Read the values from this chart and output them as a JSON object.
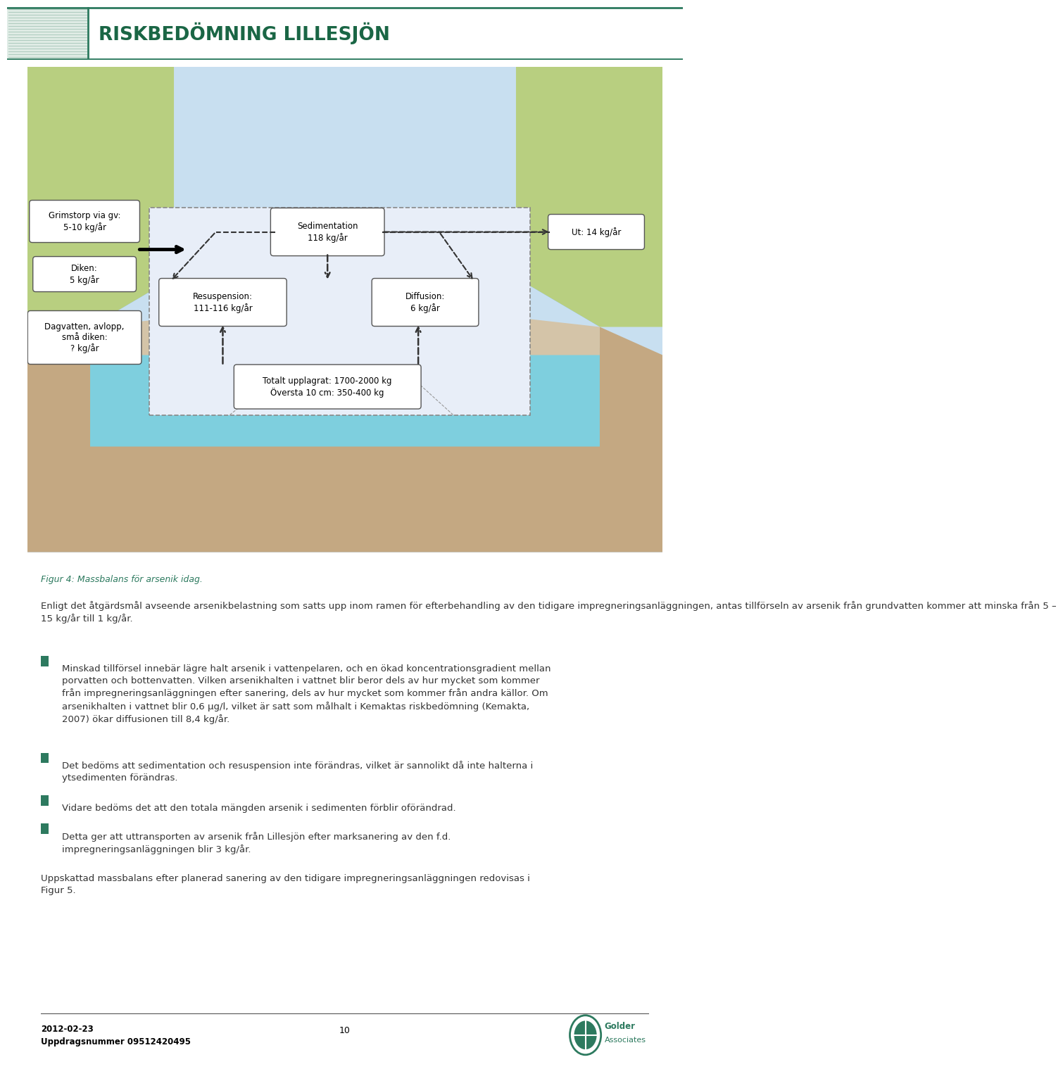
{
  "header_title": "RISKBEDÖMNING LILLESJÖN",
  "header_title_color": "#1a6645",
  "header_border_color": "#2d7a5f",
  "figure_caption": "Figur 4: Massbalans för arsenik idag.",
  "caption_color": "#2d7a5f",
  "text_color": "#333333",
  "bullet_color": "#2d7a5f",
  "para1": "Enligt det åtgärdsmål avseende arsenikbelastning som satts upp inom ramen för efterbehandling av den tidigare impregneringsanläggningen, antas tillförseln av arsenik från grundvatten kommer att minska från 5 –\n15 kg/år till 1 kg/år.",
  "bullet1": "Minskad tillförsel innebär lägre halt arsenik i vattenpelaren, och en ökad koncentrationsgradient mellan\nporvatten och bottenvatten. Vilken arsenikhalten i vattnet blir beror dels av hur mycket som kommer\nfrån impregneringsanläggningen efter sanering, dels av hur mycket som kommer från andra källor. Om\narsenikhalten i vattnet blir 0,6 µg/l, vilket är satt som målhalt i Kemaktas riskbedömning (Kemakta,\n2007) ökar diffusionen till 8,4 kg/år.",
  "bullet2": "Det bedöms att sedimentation och resuspension inte förändras, vilket är sannolikt då inte halterna i\nytsedimenten förändras.",
  "bullet3": "Vidare bedöms det att den totala mängden arsenik i sedimenten förblir oförändrad.",
  "bullet4": "Detta ger att uttransporten av arsenik från Lillesjön efter marksanering av den f.d.\nimpregneringsanläggningen blir 3 kg/år.",
  "para_final": "Uppskattad massbalans efter planerad sanering av den tidigare impregneringsanläggningen redovisas i\nFigur 5.",
  "footer_date": "2012-02-23",
  "footer_ref": "Uppdragsnummer 09512420495",
  "footer_page": "10",
  "sky_color": "#c8dff0",
  "grass_left_color": "#b8cf80",
  "grass_right_color": "#b8cf80",
  "water_deep_color": "#7ecfde",
  "water_shallow_color": "#c8dff0",
  "ground_color": "#c4a882",
  "sed_box_color": "#d4c4a8",
  "dashed_box_color": "#e8eef8",
  "white_box_color": "#f0f4fa"
}
